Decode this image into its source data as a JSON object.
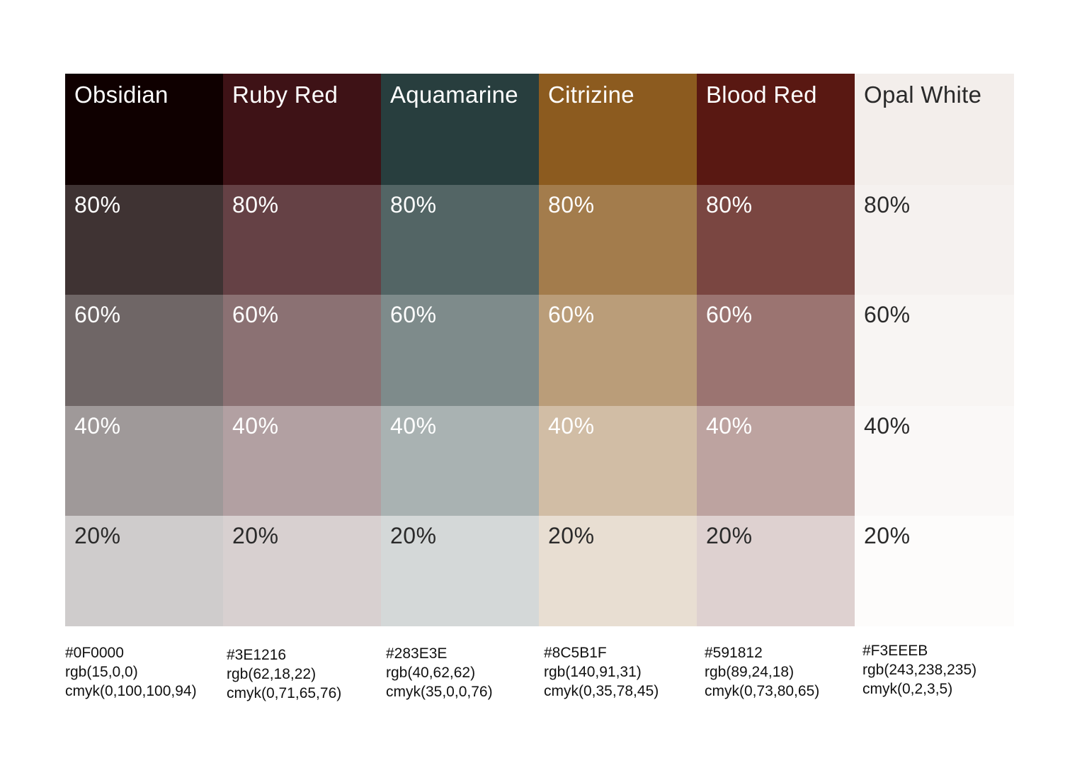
{
  "columns": [
    {
      "name": "Obsidian",
      "base_color": "#0F0000",
      "hex": "#0F0000",
      "rgb": "rgb(15,0,0)",
      "cmyk": "cmyk(0,100,100,94)",
      "label_color_header": "#ffffff"
    },
    {
      "name": "Ruby Red",
      "base_color": "#3E1216",
      "hex": "#3E1216",
      "rgb": "rgb(62,18,22)",
      "cmyk": "cmyk(0,71,65,76)",
      "label_color_header": "#ffffff"
    },
    {
      "name": "Aquamarine",
      "base_color": "#283E3E",
      "hex": "#283E3E",
      "rgb": "rgb(40,62,62)",
      "cmyk": "cmyk(35,0,0,76)",
      "label_color_header": "#ffffff"
    },
    {
      "name": "Citrizine",
      "base_color": "#8C5B1F",
      "hex": "#8C5B1F",
      "rgb": "rgb(140,91,31)",
      "cmyk": "cmyk(0,35,78,45)",
      "label_color_header": "#ffffff"
    },
    {
      "name": "Blood Red",
      "base_color": "#591812",
      "hex": "#591812",
      "rgb": "rgb(89,24,18)",
      "cmyk": "cmyk(0,73,80,65)",
      "label_color_header": "#ffffff"
    },
    {
      "name": "Opal White",
      "base_color": "#F3EEEB",
      "hex": "#F3EEEB",
      "rgb": "rgb(243,238,235)",
      "cmyk": "cmyk(0,2,3,5)",
      "label_color_header": "#2a2a2a"
    }
  ],
  "tints": [
    "80%",
    "60%",
    "40%",
    "20%"
  ],
  "tint_levels": [
    0.8,
    0.6,
    0.4,
    0.2
  ]
}
